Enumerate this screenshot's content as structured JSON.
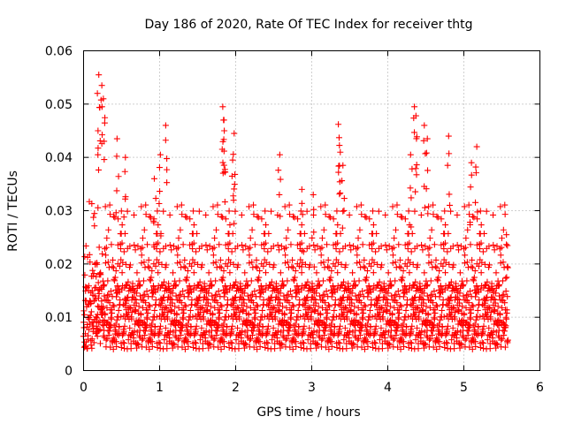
{
  "chart_data": {
    "type": "scatter",
    "title": "Day 186 of 2020, Rate Of TEC Index for receiver thtg",
    "xlabel": "GPS time / hours",
    "ylabel": "ROTI / TECUs",
    "xlim": [
      0,
      6
    ],
    "ylim": [
      0,
      0.06
    ],
    "xticks": [
      0,
      1,
      2,
      3,
      4,
      5,
      6
    ],
    "xtick_labels": [
      "0",
      "1",
      "2",
      "3",
      "4",
      "5",
      "6"
    ],
    "yticks": [
      0,
      0.01,
      0.02,
      0.03,
      0.04,
      0.05,
      0.06
    ],
    "ytick_labels": [
      "0",
      "0.01",
      "0.02",
      "0.03",
      "0.04",
      "0.05",
      "0.06"
    ],
    "grid": true,
    "marker": "+",
    "color": "#ff0000",
    "series": [
      {
        "name": "ROTI",
        "x_range": [
          0.0,
          5.58
        ],
        "baseline_band": [
          0.004,
          0.016
        ],
        "peaks": [
          {
            "x": 0.2,
            "y": 0.0555
          },
          {
            "x": 0.24,
            "y": 0.0535
          },
          {
            "x": 0.26,
            "y": 0.051
          },
          {
            "x": 0.19,
            "y": 0.045
          },
          {
            "x": 0.44,
            "y": 0.0435
          },
          {
            "x": 0.55,
            "y": 0.04
          },
          {
            "x": 0.93,
            "y": 0.036
          },
          {
            "x": 1.08,
            "y": 0.046
          },
          {
            "x": 1.01,
            "y": 0.0405
          },
          {
            "x": 1.83,
            "y": 0.0495
          },
          {
            "x": 1.84,
            "y": 0.047
          },
          {
            "x": 1.85,
            "y": 0.045
          },
          {
            "x": 1.98,
            "y": 0.0445
          },
          {
            "x": 1.96,
            "y": 0.0395
          },
          {
            "x": 2.58,
            "y": 0.0405
          },
          {
            "x": 2.87,
            "y": 0.034
          },
          {
            "x": 3.02,
            "y": 0.033
          },
          {
            "x": 3.35,
            "y": 0.0462
          },
          {
            "x": 3.36,
            "y": 0.0437
          },
          {
            "x": 3.41,
            "y": 0.0385
          },
          {
            "x": 4.35,
            "y": 0.0495
          },
          {
            "x": 4.37,
            "y": 0.0478
          },
          {
            "x": 4.48,
            "y": 0.046
          },
          {
            "x": 4.52,
            "y": 0.0435
          },
          {
            "x": 4.3,
            "y": 0.0405
          },
          {
            "x": 4.8,
            "y": 0.044
          },
          {
            "x": 5.1,
            "y": 0.039
          },
          {
            "x": 5.17,
            "y": 0.042
          },
          {
            "x": 5.56,
            "y": 0.0255
          }
        ]
      }
    ]
  }
}
